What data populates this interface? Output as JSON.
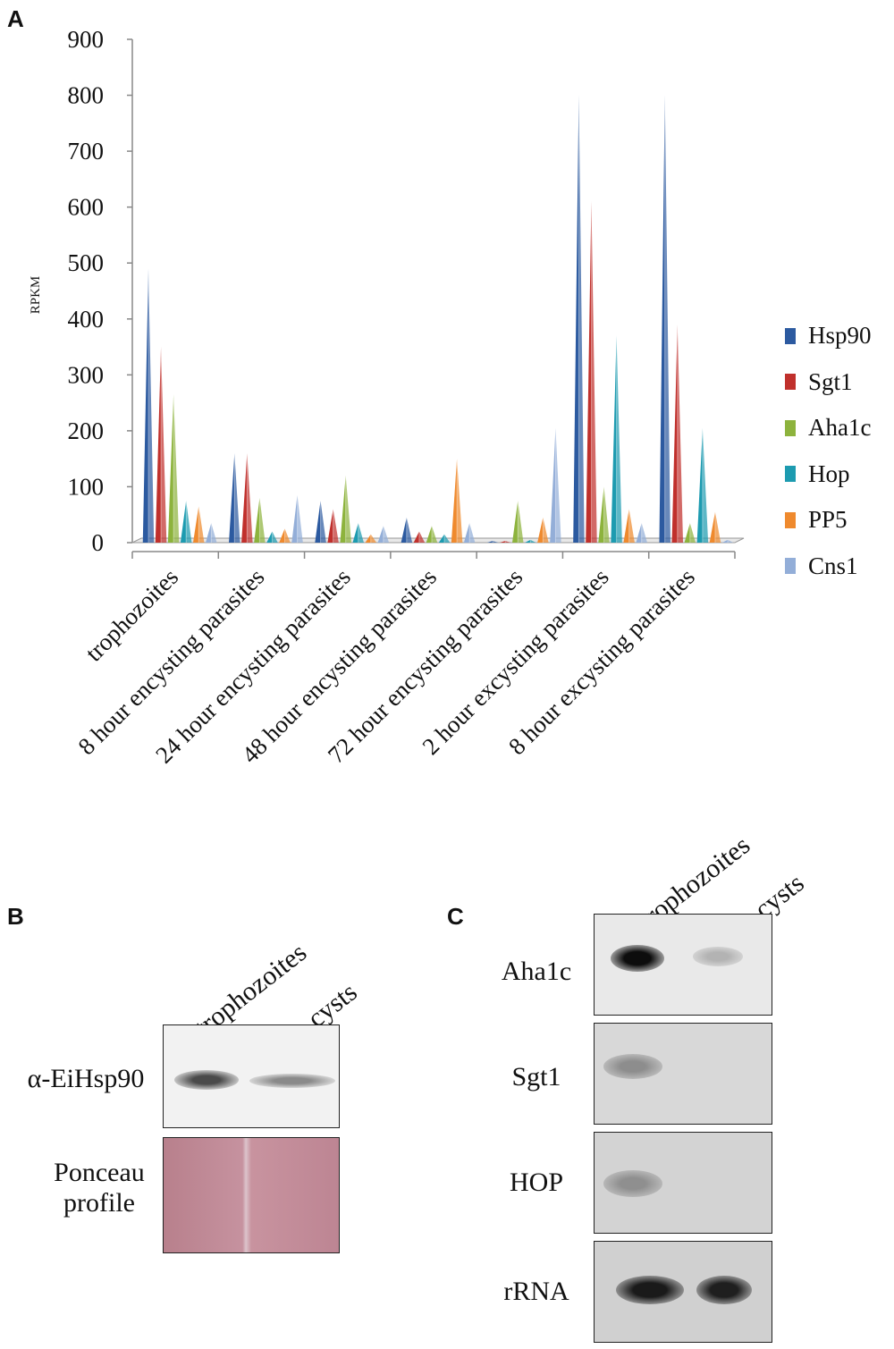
{
  "panels": {
    "a": "A",
    "b": "B",
    "c": "C"
  },
  "chart_data": {
    "type": "bar",
    "ylabel": "RPKM",
    "ylim": [
      0,
      900
    ],
    "yticks": [
      "0",
      "100",
      "200",
      "300",
      "400",
      "500",
      "600",
      "700",
      "800",
      "900"
    ],
    "categories": [
      "trophozoites",
      "8 hour encysting parasites",
      "24 hour encysting parasites",
      "48 hour encysting parasites",
      "72 hour encysting parasites",
      "2 hour excysting parasites",
      "8 hour excysting parasites"
    ],
    "legend_position": "right",
    "series": [
      {
        "name": "Hsp90",
        "color": "#2c5aa0",
        "values": [
          490,
          160,
          75,
          45,
          3,
          800,
          800
        ]
      },
      {
        "name": "Sgt1",
        "color": "#c0302c",
        "values": [
          350,
          160,
          60,
          20,
          3,
          610,
          390
        ]
      },
      {
        "name": "Aha1c",
        "color": "#8db33d",
        "values": [
          265,
          80,
          120,
          30,
          75,
          100,
          35
        ]
      },
      {
        "name": "Hop",
        "color": "#1d9bb0",
        "values": [
          75,
          20,
          35,
          15,
          5,
          370,
          205
        ]
      },
      {
        "name": "PP5",
        "color": "#ef8a2e",
        "values": [
          65,
          25,
          15,
          150,
          45,
          60,
          55
        ]
      },
      {
        "name": "Cns1",
        "color": "#93aed8",
        "values": [
          35,
          85,
          30,
          35,
          205,
          35,
          5
        ]
      }
    ]
  },
  "blot_b": {
    "lanes": [
      "trophozoites",
      "cysts"
    ],
    "rows": [
      "α-EiHsp90",
      "Ponceau profile"
    ]
  },
  "blot_c": {
    "lanes": [
      "trophozoites",
      "cysts"
    ],
    "rows": [
      "Aha1c",
      "Sgt1",
      "HOP",
      "rRNA"
    ]
  }
}
